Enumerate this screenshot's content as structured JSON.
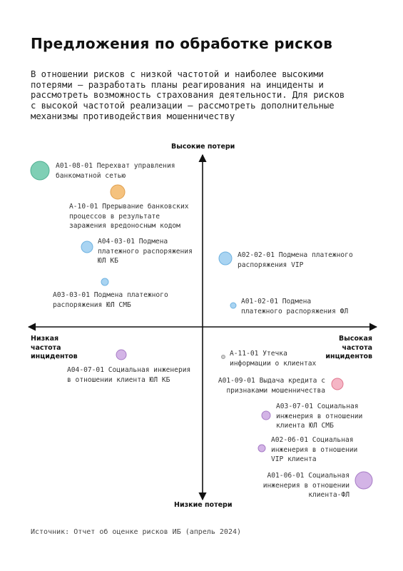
{
  "title": "Предложения по обработке рисков",
  "intro_lines": [
    "В отношении рисков с низкой частотой и наиболее высокими",
    "потерями – разработать планы реагирования на инциденты и",
    "рассмотреть возможность страхования деятельности. Для рисков",
    "с высокой частотой реализации – рассмотреть дополнительные",
    "механизмы противодействия мошенничеству"
  ],
  "axes": {
    "top": "Высокие потери",
    "bottom": "Низкие потери",
    "left": [
      "Низкая",
      "частота",
      "инцидентов"
    ],
    "right": [
      "Высокая",
      "частота",
      "инцидентов"
    ]
  },
  "risks": [
    {
      "lines": [
        "А01-08-01 Перехват управления",
        "банкоматной сетью"
      ],
      "color": "#7fcfb5"
    },
    {
      "lines": [
        "А-10-01 Прерывание банковских",
        "процессов в результате",
        "заражения вредоносным кодом"
      ],
      "color": "#f5c27e"
    },
    {
      "lines": [
        "А04-03-01 Подмена",
        "платежного распоряжения",
        "ЮЛ КБ"
      ],
      "color": "#a9d4f2"
    },
    {
      "lines": [
        "А03-03-01 Подмена платежного",
        "распоряжения ЮЛ СМБ"
      ],
      "color": "#a9d4f2"
    },
    {
      "lines": [
        "А02-02-01 Подмена платежного",
        "распоряжения VIP"
      ],
      "color": "#a9d4f2"
    },
    {
      "lines": [
        "А01-02-01 Подмена",
        "платежного распоряжения ФЛ"
      ],
      "color": "#a9d4f2"
    },
    {
      "lines": [
        "А04-07-01 Социальная инженерия",
        "в отношении клиента ЮЛ КБ"
      ],
      "color": "#d3b4e6"
    },
    {
      "lines": [
        "А-11-01 Утечка",
        "информации о клиентах"
      ],
      "color": "#cfcfcf"
    },
    {
      "lines": [
        "А01-09-01 Выдача кредита с",
        "признаками мошенничества"
      ],
      "color": "#f5b5c5"
    },
    {
      "lines": [
        "А03-07-01 Социальная",
        "инженерия в отношении",
        "клиента ЮЛ СМБ"
      ],
      "color": "#d3b4e6"
    },
    {
      "lines": [
        "А02-06-01 Социальная",
        "инженерия в отношении",
        "VIP клиента"
      ],
      "color": "#d3b4e6"
    },
    {
      "lines": [
        "А01-06-01 Социальная",
        "инженерия в отношении",
        "клиента-ФЛ"
      ],
      "color": "#d3b4e6"
    }
  ],
  "source": "Источник: Отчет об оценке рисков ИБ (апрель 2024)"
}
